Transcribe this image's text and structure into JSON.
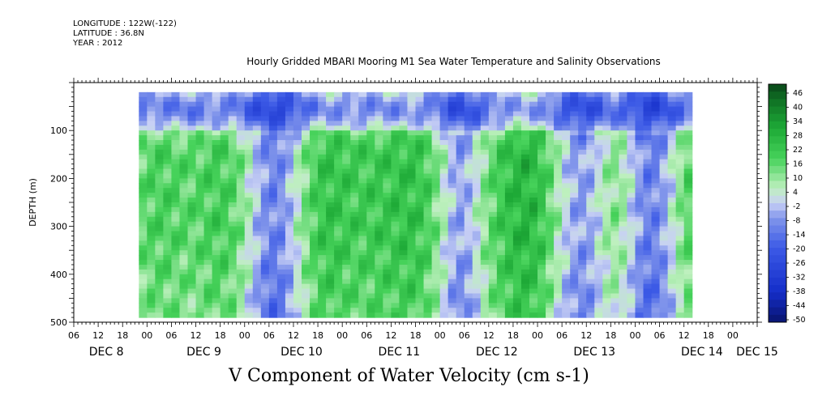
{
  "header": {
    "longitude": "LONGITUDE : 122W(-122)",
    "latitude": "LATITUDE : 36.8N",
    "year": "YEAR : 2012",
    "title": "Hourly Gridded MBARI Mooring M1 Sea Water Temperature and Salinity Observations"
  },
  "footer": {
    "variable_title": "V Component of Water Velocity (cm s-1)"
  },
  "chart_data": {
    "type": "heatmap",
    "title": "Hourly Gridded MBARI Mooring M1 Sea Water Temperature and Salinity Observations",
    "xlabel": "",
    "ylabel": "DEPTH (m)",
    "y_axis": {
      "ticks": [
        100,
        200,
        300,
        400,
        500
      ],
      "tick_labels": [
        "100",
        "200",
        "300",
        "400",
        "500"
      ],
      "range": [
        0,
        500
      ],
      "inverted": true
    },
    "x_axis": {
      "hour_labels": [
        "06",
        "12",
        "18",
        "00",
        "06",
        "12",
        "18",
        "00",
        "06",
        "12",
        "18",
        "00",
        "06",
        "12",
        "18",
        "00",
        "06",
        "12",
        "18",
        "00",
        "06",
        "12",
        "18",
        "00",
        "06",
        "12",
        "18",
        "00"
      ],
      "day_labels": [
        "DEC  8",
        "DEC  9",
        "DEC 10",
        "DEC 11",
        "DEC 12",
        "DEC 13",
        "DEC 14",
        "DEC 15"
      ],
      "range_hours_from_dec8_00": [
        -6,
        162
      ]
    },
    "data_extent": {
      "start": "DEC 8 10:00",
      "end": "DEC 15 01:00",
      "depth_range_m": [
        20,
        490
      ]
    },
    "colorbar": {
      "labels": [
        "46",
        "40",
        "34",
        "28",
        "22",
        "16",
        "10",
        "4",
        "-2",
        "-8",
        "-14",
        "-20",
        "-26",
        "-32",
        "-38",
        "-44",
        "-50"
      ],
      "min": -50,
      "max": 46,
      "step": 3
    },
    "description_regions": [
      {
        "day": "DEC 8",
        "near_surface": "strong negative (blue)",
        "mid_depth": "positive (green) 150-300 m"
      },
      {
        "day": "DEC 11",
        "column": "mostly positive (green)"
      },
      {
        "day": "DEC 12",
        "column": "strong positive (green) in upper and mid water"
      },
      {
        "day": "DEC 13",
        "column": "mostly negative (blue)"
      }
    ]
  },
  "colors": {
    "negative": "#1f3fd8",
    "zero": "#d6dcf7",
    "positive": "#2fbf45"
  }
}
